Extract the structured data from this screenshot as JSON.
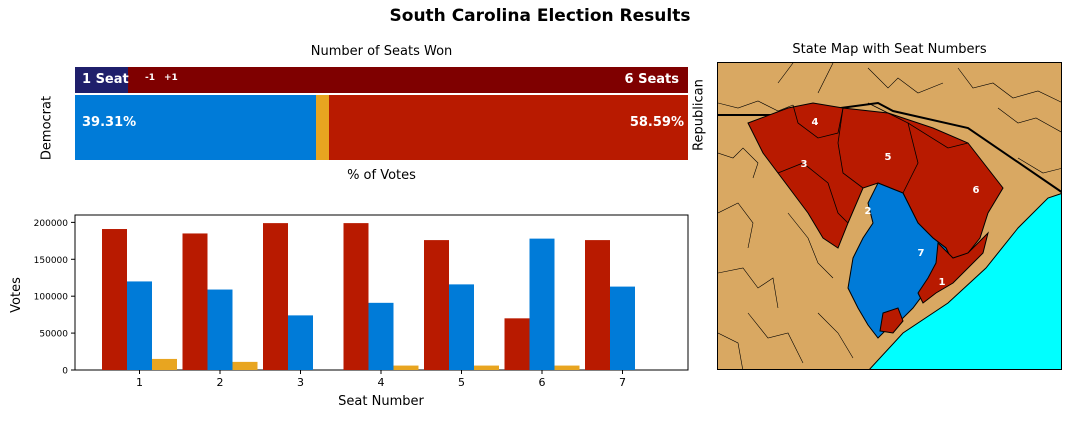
{
  "title": "South Carolina Election Results",
  "seats_panel": {
    "title": "Number of Seats Won",
    "dem_seats_label": "1 Seat",
    "dem_change": "-1",
    "rep_change": "+1",
    "rep_seats_label": "6 Seats",
    "dem_vote_label": "39.31%",
    "rep_vote_label": "58.59%",
    "dem_axis_label": "Democrat",
    "rep_axis_label": "Republican",
    "caption": "% of Votes",
    "dem_seats": 1,
    "rep_seats": 6,
    "dem_vote_pct": 39.31,
    "other_vote_pct": 2.1,
    "rep_vote_pct": 58.59
  },
  "map_panel": {
    "title": "State Map with Seat Numbers",
    "district_labels": [
      "1",
      "2",
      "3",
      "4",
      "5",
      "6",
      "7"
    ]
  },
  "colors": {
    "republican": "#b81a00",
    "republican_dark": "#7f0000",
    "democrat": "#007bd8",
    "democrat_dark": "#1f1f6b",
    "other": "#e8a520",
    "land": "#d9a862",
    "water": "#00ffff"
  },
  "chart_data": {
    "type": "bar",
    "title": "",
    "xlabel": "Seat Number",
    "ylabel": "Votes",
    "categories": [
      "1",
      "2",
      "3",
      "4",
      "5",
      "6",
      "7"
    ],
    "ylim": [
      0,
      210000
    ],
    "yticks": [
      0,
      50000,
      100000,
      150000,
      200000
    ],
    "series": [
      {
        "color": "#b81a00",
        "values": [
          191000,
          185000,
          199000,
          199000,
          176000,
          70000,
          176000
        ]
      },
      {
        "color": "#007bd8",
        "values": [
          120000,
          109000,
          74000,
          91000,
          116000,
          178000,
          113000
        ]
      },
      {
        "color": "#e8a520",
        "values": [
          15000,
          11000,
          0,
          6000,
          6000,
          6000,
          0
        ]
      }
    ]
  }
}
